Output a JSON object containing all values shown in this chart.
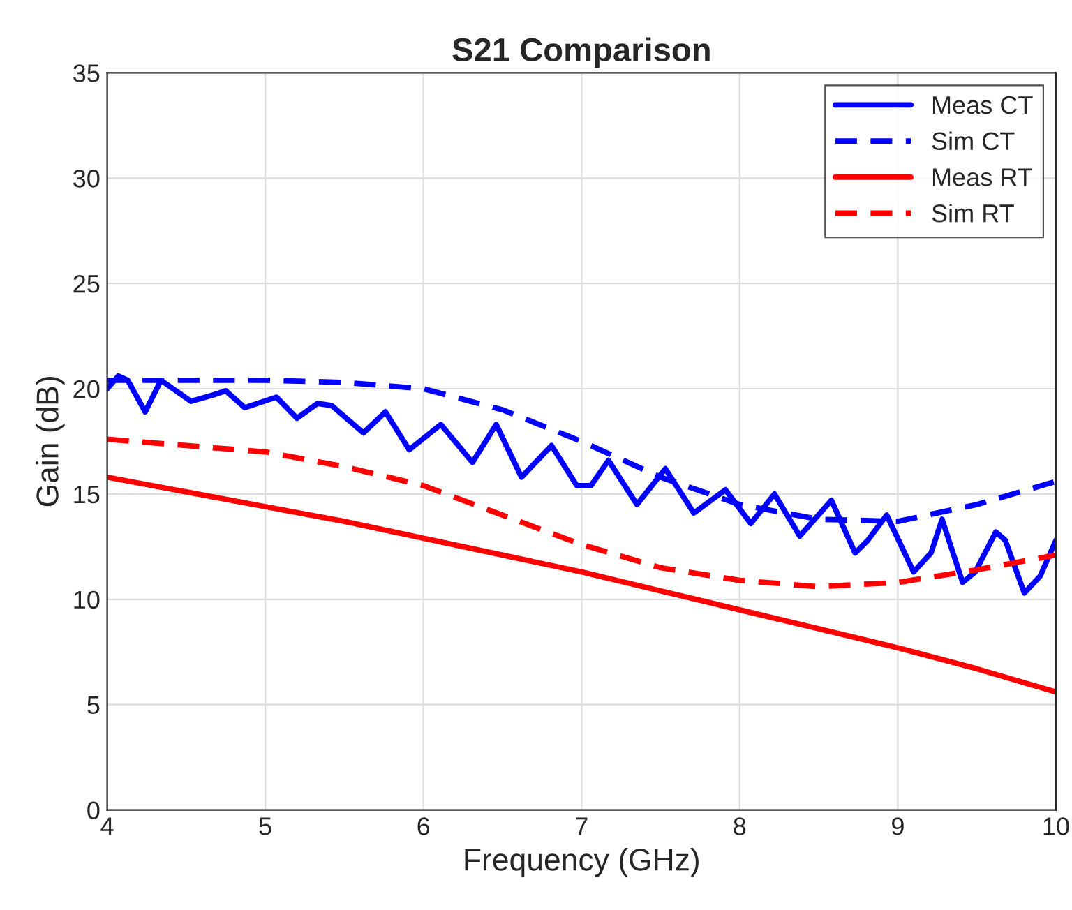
{
  "chart_data": {
    "type": "line",
    "title": "S21 Comparison",
    "xlabel": "Frequency (GHz)",
    "ylabel": "Gain (dB)",
    "xlim": [
      4,
      10
    ],
    "xticks": [
      4,
      5,
      6,
      7,
      8,
      9,
      10
    ],
    "ylim": [
      0,
      35
    ],
    "yticks": [
      0,
      5,
      10,
      15,
      20,
      25,
      30,
      35
    ],
    "grid": true,
    "legend": "top right",
    "series": [
      {
        "name": "Meas CT",
        "color": "#0000ff",
        "line_style": "solid",
        "x": [
          4.0,
          4.07,
          4.13,
          4.24,
          4.34,
          4.53,
          4.67,
          4.75,
          4.87,
          5.07,
          5.2,
          5.33,
          5.42,
          5.62,
          5.76,
          5.91,
          6.11,
          6.31,
          6.46,
          6.62,
          6.81,
          6.97,
          7.06,
          7.17,
          7.35,
          7.53,
          7.71,
          7.91,
          8.07,
          8.22,
          8.38,
          8.58,
          8.73,
          8.81,
          8.93,
          9.1,
          9.21,
          9.28,
          9.41,
          9.49,
          9.62,
          9.68,
          9.8,
          9.9,
          10.0
        ],
        "values": [
          20.0,
          20.6,
          20.4,
          18.9,
          20.4,
          19.4,
          19.7,
          19.9,
          19.1,
          19.6,
          18.6,
          19.3,
          19.2,
          17.9,
          18.9,
          17.1,
          18.3,
          16.5,
          18.3,
          15.8,
          17.3,
          15.4,
          15.4,
          16.6,
          14.5,
          16.2,
          14.1,
          15.2,
          13.6,
          15.0,
          13.0,
          14.7,
          12.2,
          12.8,
          14.0,
          11.3,
          12.2,
          13.8,
          10.8,
          11.3,
          13.2,
          12.8,
          10.3,
          11.1,
          12.8
        ]
      },
      {
        "name": "Sim CT",
        "color": "#0000ff",
        "line_style": "dashed",
        "x": [
          4,
          4.5,
          5,
          5.5,
          6,
          6.5,
          7,
          7.5,
          8,
          8.5,
          9,
          9.5,
          10
        ],
        "values": [
          20.4,
          20.4,
          20.4,
          20.3,
          20.0,
          19.0,
          17.5,
          15.8,
          14.5,
          13.8,
          13.7,
          14.5,
          15.6
        ]
      },
      {
        "name": "Meas RT",
        "color": "#ff0000",
        "line_style": "solid",
        "x": [
          4,
          4.5,
          5,
          5.5,
          6,
          6.5,
          7,
          7.5,
          8,
          8.5,
          9,
          9.5,
          10
        ],
        "values": [
          15.8,
          15.1,
          14.4,
          13.7,
          12.9,
          12.1,
          11.3,
          10.4,
          9.5,
          8.6,
          7.7,
          6.7,
          5.6
        ]
      },
      {
        "name": "Sim RT",
        "color": "#ff0000",
        "line_style": "dashed",
        "x": [
          4,
          4.5,
          5,
          5.5,
          6,
          6.5,
          7,
          7.5,
          8,
          8.5,
          9,
          9.5,
          10
        ],
        "values": [
          17.6,
          17.3,
          17.0,
          16.3,
          15.4,
          14.0,
          12.6,
          11.5,
          10.9,
          10.6,
          10.8,
          11.4,
          12.1
        ]
      }
    ]
  }
}
